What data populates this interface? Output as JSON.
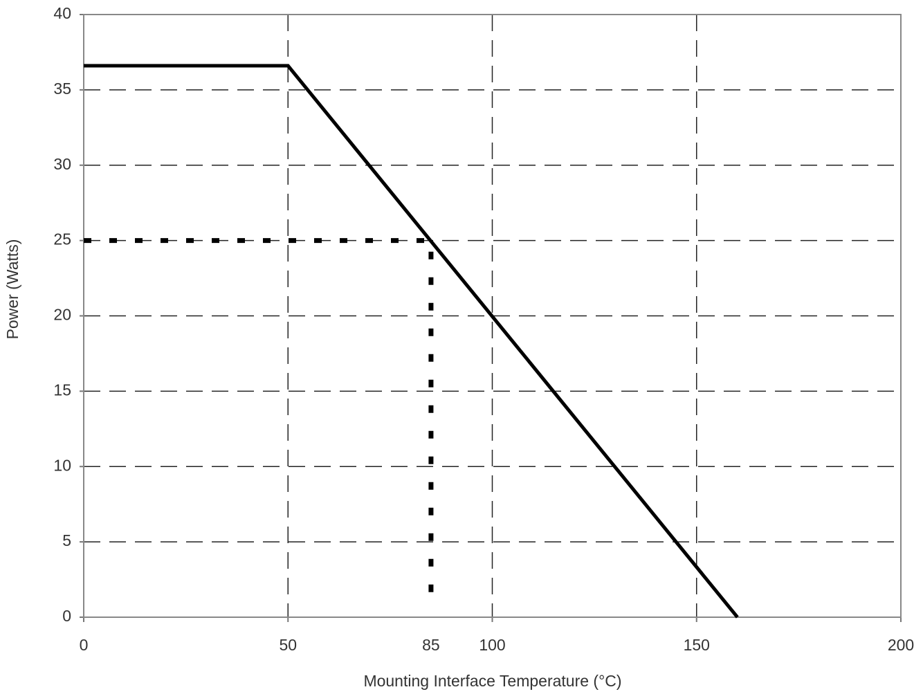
{
  "chart_data": {
    "type": "line",
    "xlabel": "Mounting Interface Temperature (°C)",
    "ylabel": "Power (Watts)",
    "series": [
      {
        "color": "#000000",
        "style": "solid",
        "x": [
          0,
          50,
          160
        ],
        "values": [
          36.6,
          36.6,
          0
        ]
      },
      {
        "color": "#000000",
        "style": "dotted",
        "x": [
          0,
          85,
          85
        ],
        "values": [
          25,
          25,
          0.5
        ]
      }
    ],
    "annotations": [
      {
        "text": "85",
        "x": 85
      }
    ],
    "xlim": [
      0,
      200
    ],
    "xticks": [
      0,
      50,
      100,
      150,
      200
    ],
    "ylim": [
      0,
      40
    ],
    "yticks": [
      0,
      5,
      10,
      15,
      20,
      25,
      30,
      35,
      40
    ],
    "grid": true
  }
}
